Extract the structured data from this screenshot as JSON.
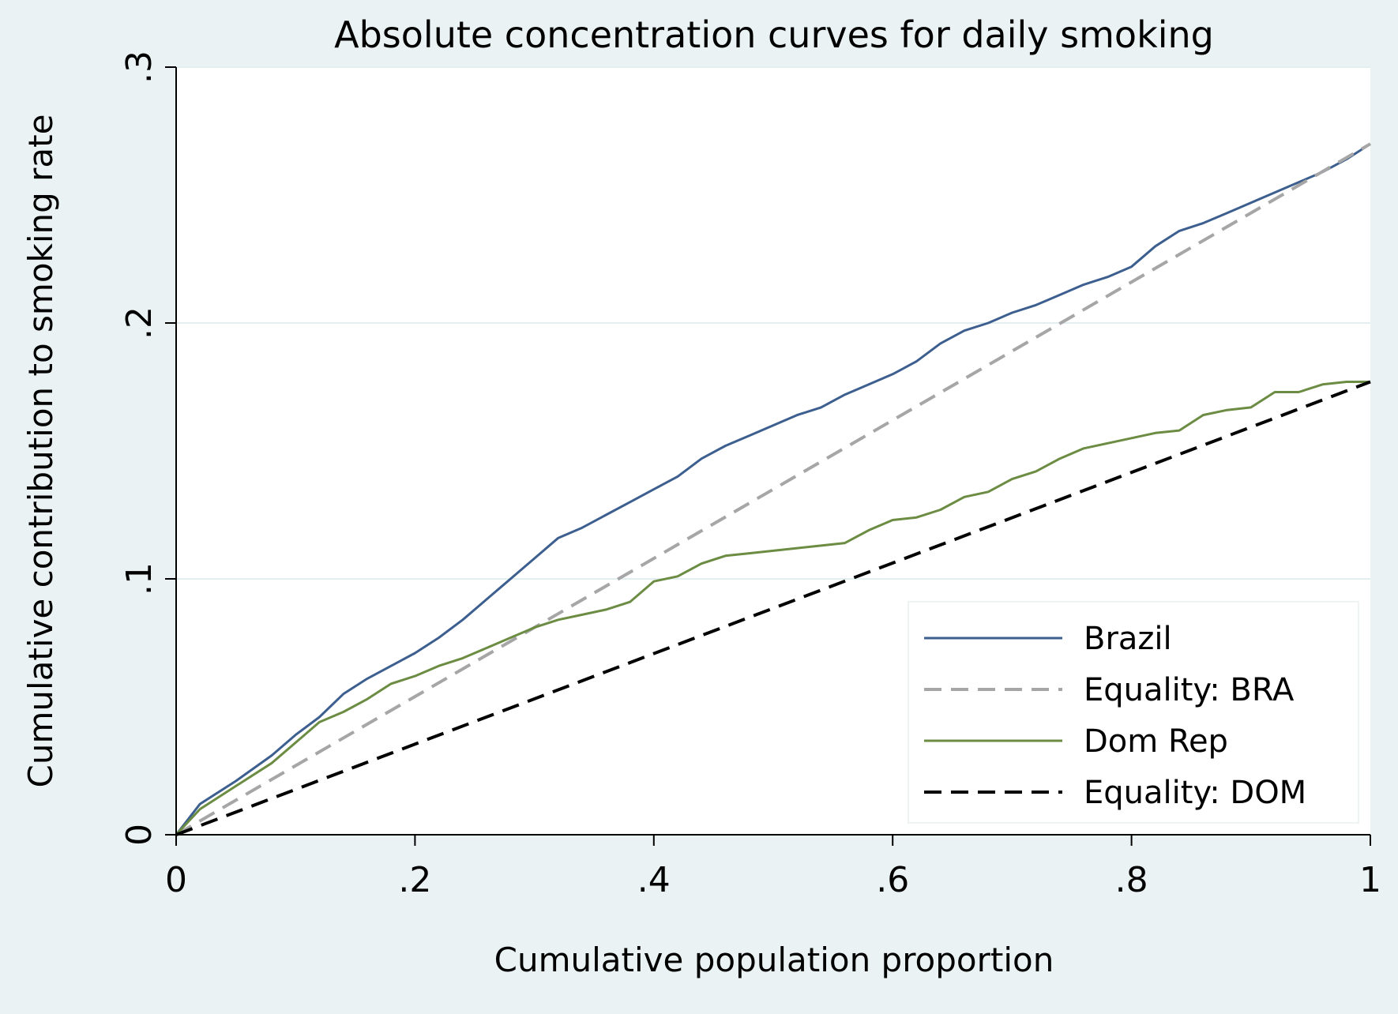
{
  "chart_data": {
    "type": "line",
    "title": "Absolute concentration curves for daily smoking",
    "xlabel": "Cumulative population proportion",
    "ylabel": "Cumulative contribution to smoking rate",
    "xlim": [
      0,
      1
    ],
    "ylim": [
      0,
      0.3
    ],
    "x_ticks": [
      0,
      0.2,
      0.4,
      0.6,
      0.8,
      1
    ],
    "x_tick_labels": [
      "0",
      ".2",
      ".4",
      ".6",
      ".8",
      "1"
    ],
    "y_ticks": [
      0,
      0.1,
      0.2,
      0.3
    ],
    "y_tick_labels": [
      "0",
      ".1",
      ".2",
      ".3"
    ],
    "grid": true,
    "legend_position": "bottom-right",
    "series": [
      {
        "name": "Brazil",
        "color": "#3d5f8f",
        "dash": "solid",
        "x": [
          0,
          0.02,
          0.05,
          0.08,
          0.1,
          0.12,
          0.14,
          0.16,
          0.18,
          0.2,
          0.22,
          0.24,
          0.26,
          0.28,
          0.3,
          0.32,
          0.34,
          0.36,
          0.38,
          0.4,
          0.42,
          0.44,
          0.46,
          0.48,
          0.5,
          0.52,
          0.54,
          0.56,
          0.58,
          0.6,
          0.62,
          0.64,
          0.66,
          0.68,
          0.7,
          0.72,
          0.74,
          0.76,
          0.78,
          0.8,
          0.82,
          0.84,
          0.86,
          0.88,
          0.9,
          0.92,
          0.94,
          0.96,
          0.98,
          1
        ],
        "y": [
          0,
          0.012,
          0.021,
          0.031,
          0.039,
          0.046,
          0.055,
          0.061,
          0.066,
          0.071,
          0.077,
          0.084,
          0.092,
          0.1,
          0.108,
          0.116,
          0.12,
          0.125,
          0.13,
          0.135,
          0.14,
          0.147,
          0.152,
          0.156,
          0.16,
          0.164,
          0.167,
          0.172,
          0.176,
          0.18,
          0.185,
          0.192,
          0.197,
          0.2,
          0.204,
          0.207,
          0.211,
          0.215,
          0.218,
          0.222,
          0.23,
          0.236,
          0.239,
          0.243,
          0.247,
          0.251,
          0.255,
          0.259,
          0.264,
          0.27
        ]
      },
      {
        "name": "Equality: BRA",
        "color": "#a6a6a6",
        "dash": "dashed",
        "x": [
          0,
          1
        ],
        "y": [
          0,
          0.27
        ]
      },
      {
        "name": "Dom Rep",
        "color": "#6b8c42",
        "dash": "solid",
        "x": [
          0,
          0.02,
          0.05,
          0.08,
          0.1,
          0.12,
          0.14,
          0.16,
          0.18,
          0.2,
          0.22,
          0.24,
          0.26,
          0.28,
          0.3,
          0.32,
          0.34,
          0.36,
          0.38,
          0.4,
          0.42,
          0.44,
          0.46,
          0.48,
          0.5,
          0.52,
          0.54,
          0.56,
          0.58,
          0.6,
          0.62,
          0.64,
          0.66,
          0.68,
          0.7,
          0.72,
          0.74,
          0.76,
          0.78,
          0.8,
          0.82,
          0.84,
          0.86,
          0.88,
          0.9,
          0.92,
          0.94,
          0.96,
          0.98,
          1
        ],
        "y": [
          0,
          0.01,
          0.019,
          0.028,
          0.036,
          0.044,
          0.048,
          0.053,
          0.059,
          0.062,
          0.066,
          0.069,
          0.073,
          0.077,
          0.081,
          0.084,
          0.086,
          0.088,
          0.091,
          0.099,
          0.101,
          0.106,
          0.109,
          0.11,
          0.111,
          0.112,
          0.113,
          0.114,
          0.119,
          0.123,
          0.124,
          0.127,
          0.132,
          0.134,
          0.139,
          0.142,
          0.147,
          0.151,
          0.153,
          0.155,
          0.157,
          0.158,
          0.164,
          0.166,
          0.167,
          0.173,
          0.173,
          0.176,
          0.177,
          0.177
        ]
      },
      {
        "name": "Equality: DOM",
        "color": "#000000",
        "dash": "dashed",
        "x": [
          0,
          1
        ],
        "y": [
          0,
          0.177
        ]
      }
    ]
  },
  "colors": {
    "background": "#eaf2f3",
    "plot_area": "#ffffff",
    "gridline": "#e3eef0"
  }
}
